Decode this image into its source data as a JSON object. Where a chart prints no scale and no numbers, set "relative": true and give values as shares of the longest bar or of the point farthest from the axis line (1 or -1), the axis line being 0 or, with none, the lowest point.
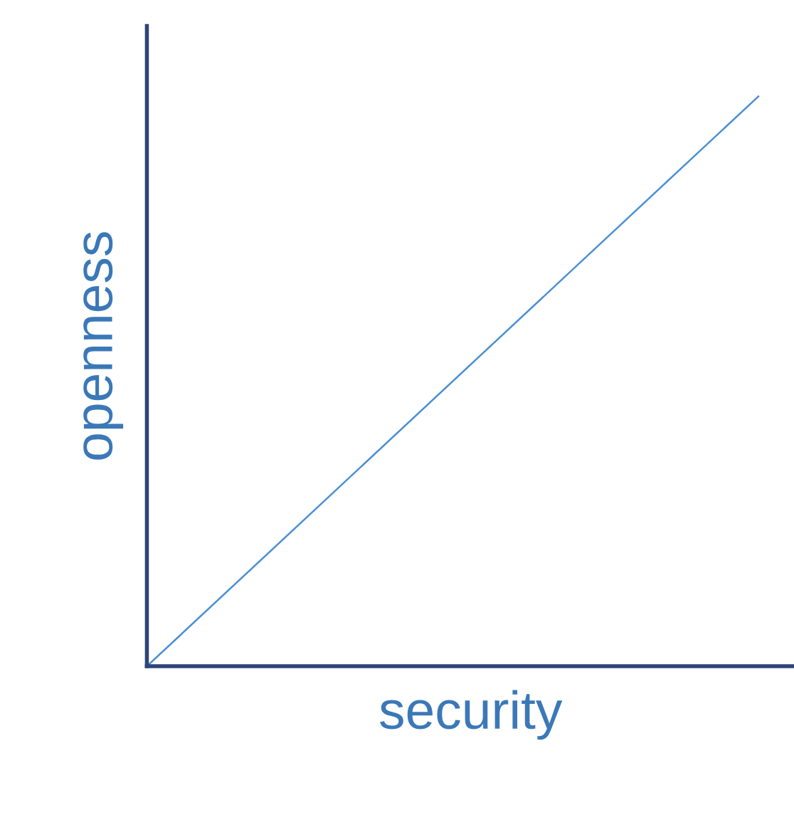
{
  "chart_data": {
    "type": "line",
    "xlabel": "security",
    "ylabel": "openness",
    "categories": [
      null,
      null
    ],
    "series": [
      {
        "color": "#4a8fd4",
        "values": [
          0,
          1
        ]
      }
    ],
    "relative": true,
    "tick_labels": false
  }
}
